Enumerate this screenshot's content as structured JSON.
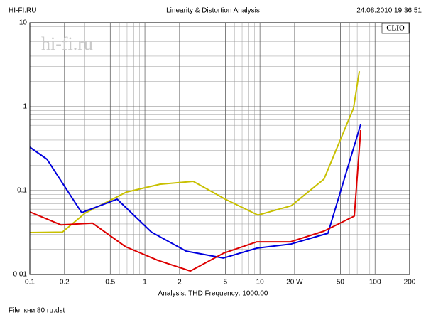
{
  "chart_data": {
    "type": "line",
    "header_left": "HI-FI.RU",
    "title": "Linearity & Distortion Analysis",
    "header_right": "24.08.2010 19.36.51",
    "watermark": "hi-fi.ru",
    "badge": "CLIO",
    "subtitle": "Analysis: THD   Frequency: 1000.00",
    "file_label": "File: кни 80 гц.dst",
    "x_log": true,
    "y_log": true,
    "grid": true,
    "xlim": [
      0.1,
      200
    ],
    "ylim": [
      0.01,
      10
    ],
    "xticks": [
      0.1,
      0.2,
      0.5,
      1,
      2,
      5,
      10,
      {
        "value": 20,
        "label": "20 W"
      },
      50,
      100,
      200
    ],
    "yticks": [
      10,
      1,
      0.1,
      0.01
    ],
    "series": [
      {
        "color": "#c8c000",
        "x": [
          0.1,
          0.192,
          0.303,
          0.69,
          1.35,
          2.63,
          5.0,
          9.6,
          18.7,
          36,
          65,
          73
        ],
        "values": [
          0.0316,
          0.032,
          0.054,
          0.096,
          0.119,
          0.129,
          0.079,
          0.051,
          0.066,
          0.137,
          0.96,
          2.65
        ]
      },
      {
        "color": "#0000dd",
        "x": [
          0.1,
          0.141,
          0.282,
          0.574,
          1.14,
          2.28,
          4.8,
          9.4,
          18.7,
          39,
          75
        ],
        "values": [
          0.329,
          0.236,
          0.0546,
          0.079,
          0.032,
          0.019,
          0.0157,
          0.0206,
          0.0231,
          0.031,
          0.614
        ]
      },
      {
        "color": "#dd0000",
        "x": [
          0.1,
          0.187,
          0.35,
          0.68,
          1.29,
          2.48,
          4.85,
          9.4,
          18.4,
          36,
          66,
          75
        ],
        "values": [
          0.0557,
          0.039,
          0.041,
          0.0214,
          0.0148,
          0.011,
          0.018,
          0.0245,
          0.0245,
          0.0329,
          0.0496,
          0.525
        ]
      }
    ]
  }
}
